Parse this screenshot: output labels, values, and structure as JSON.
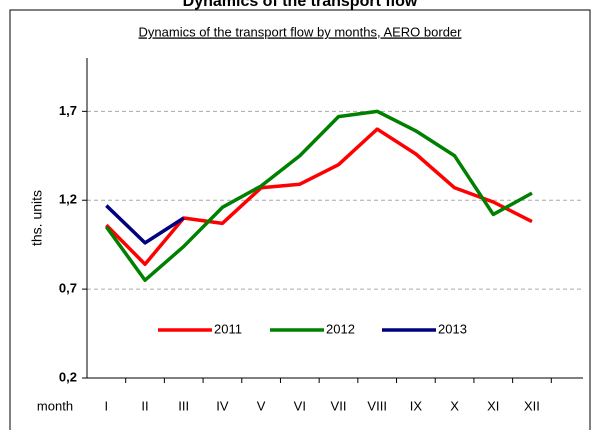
{
  "chart_data": {
    "type": "line",
    "title": "Dynamics of the transport flow",
    "subtitle": "Dynamics of the transport flow by months, AERO border",
    "y_label": "ths. units",
    "x_label": "month",
    "categories": [
      "I",
      "II",
      "III",
      "IV",
      "V",
      "VI",
      "VII",
      "VIII",
      "IX",
      "X",
      "XI",
      "XII",
      null
    ],
    "series": [
      {
        "name": "2011",
        "color": "#ff0000",
        "values": [
          1.06,
          0.84,
          1.1,
          1.07,
          1.27,
          1.29,
          1.4,
          1.6,
          1.46,
          1.27,
          1.19,
          1.08,
          null
        ]
      },
      {
        "name": "2012",
        "color": "#008000",
        "values": [
          1.05,
          0.75,
          0.94,
          1.16,
          1.28,
          1.45,
          1.67,
          1.7,
          1.59,
          1.45,
          1.12,
          1.24,
          null
        ]
      },
      {
        "name": "2013",
        "color": "#000080",
        "values": [
          1.17,
          0.96,
          1.1,
          null,
          null,
          null,
          null,
          null,
          null,
          null,
          null,
          null,
          null
        ]
      }
    ],
    "ylim": [
      0.2,
      2.0
    ],
    "yticks": [
      {
        "value": 0.2,
        "label": "0,2"
      },
      {
        "value": 0.7,
        "label": "0,7"
      },
      {
        "value": 1.2,
        "label": "1,2"
      },
      {
        "value": 1.7,
        "label": "1,7"
      }
    ],
    "grid": true,
    "legend": "bottom"
  }
}
